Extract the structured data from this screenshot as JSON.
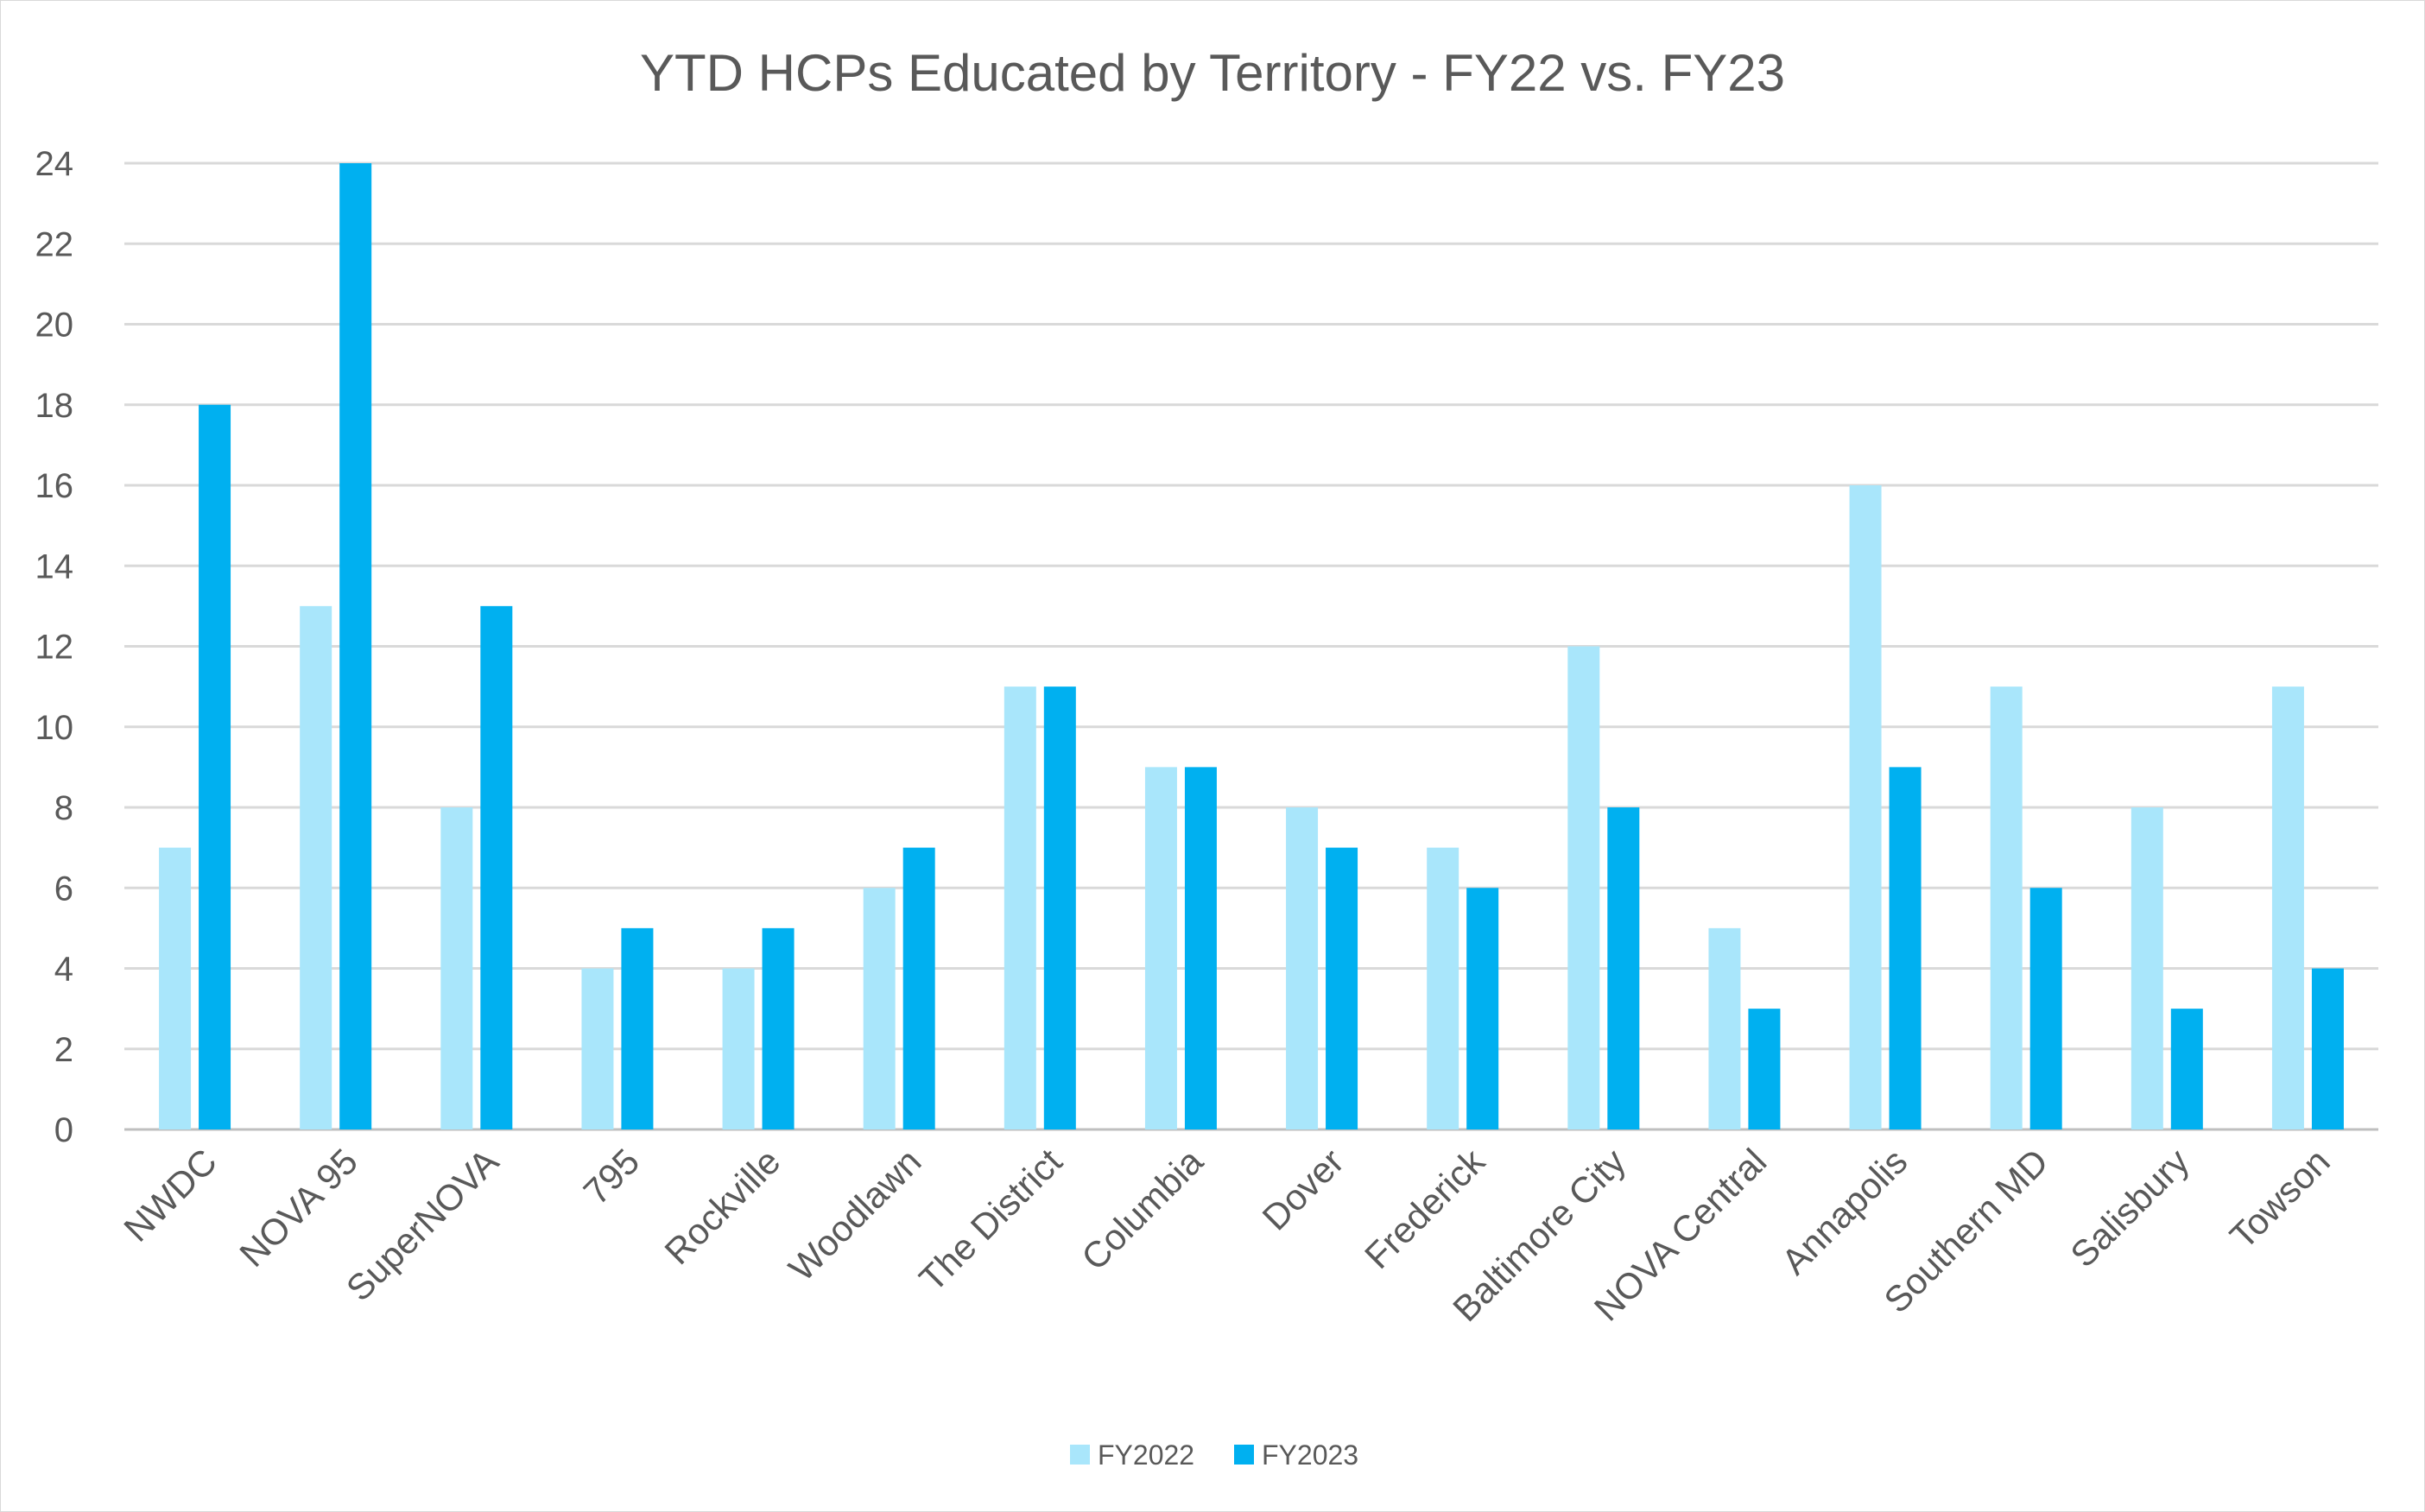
{
  "chart_data": {
    "type": "bar",
    "title": "YTD HCPs Educated by Territory - FY22 vs. FY23",
    "xlabel": "",
    "ylabel": "",
    "ylim": [
      0,
      24
    ],
    "yticks": [
      0,
      2,
      4,
      6,
      8,
      10,
      12,
      14,
      16,
      18,
      20,
      22,
      24
    ],
    "grid": true,
    "legend_placement": "bottom",
    "categories": [
      "NWDC",
      "NOVA 95",
      "SuperNOVA",
      "795",
      "Rockville",
      "Woodlawn",
      "The District",
      "Columbia",
      "Dover",
      "Frederick",
      "Baltimore City",
      "NOVA Central",
      "Annapolis",
      "Southern MD",
      "Salisbury",
      "Towson"
    ],
    "series": [
      {
        "name": "FY2022",
        "color": "#A9E6FB",
        "values": [
          7,
          13,
          8,
          4,
          4,
          6,
          11,
          9,
          8,
          7,
          12,
          5,
          16,
          11,
          8,
          11
        ]
      },
      {
        "name": "FY2023",
        "color": "#00B0F0",
        "values": [
          18,
          24,
          13,
          5,
          5,
          7,
          11,
          9,
          7,
          6,
          8,
          3,
          9,
          6,
          3,
          4
        ]
      }
    ]
  }
}
